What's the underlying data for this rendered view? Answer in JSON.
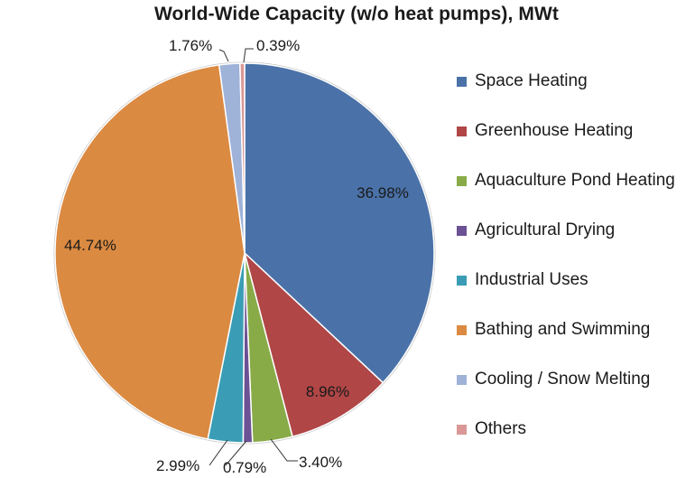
{
  "chart_data": {
    "type": "pie",
    "title": "World-Wide Capacity (w/o heat pumps), MWt",
    "legend_position": "right",
    "start_angle_deg": 0,
    "direction": "clockwise",
    "slices": [
      {
        "name": "Space Heating",
        "value": 36.98,
        "label": "36.98%",
        "color": "#4a72a8"
      },
      {
        "name": "Greenhouse Heating",
        "value": 8.96,
        "label": "8.96%",
        "color": "#b04646"
      },
      {
        "name": "Aquaculture Pond Heating",
        "value": 3.4,
        "label": "3.40%",
        "color": "#88ab48"
      },
      {
        "name": "Agricultural Drying",
        "value": 0.79,
        "label": "0.79%",
        "color": "#6c5194"
      },
      {
        "name": "Industrial Uses",
        "value": 2.99,
        "label": "2.99%",
        "color": "#3a9db5"
      },
      {
        "name": "Bathing and Swimming",
        "value": 44.74,
        "label": "44.74%",
        "color": "#db8a42"
      },
      {
        "name": "Cooling / Snow Melting",
        "value": 1.76,
        "label": "1.76%",
        "color": "#9fb2d8"
      },
      {
        "name": "Others",
        "value": 0.39,
        "label": "0.39%",
        "color": "#d99896"
      }
    ]
  }
}
